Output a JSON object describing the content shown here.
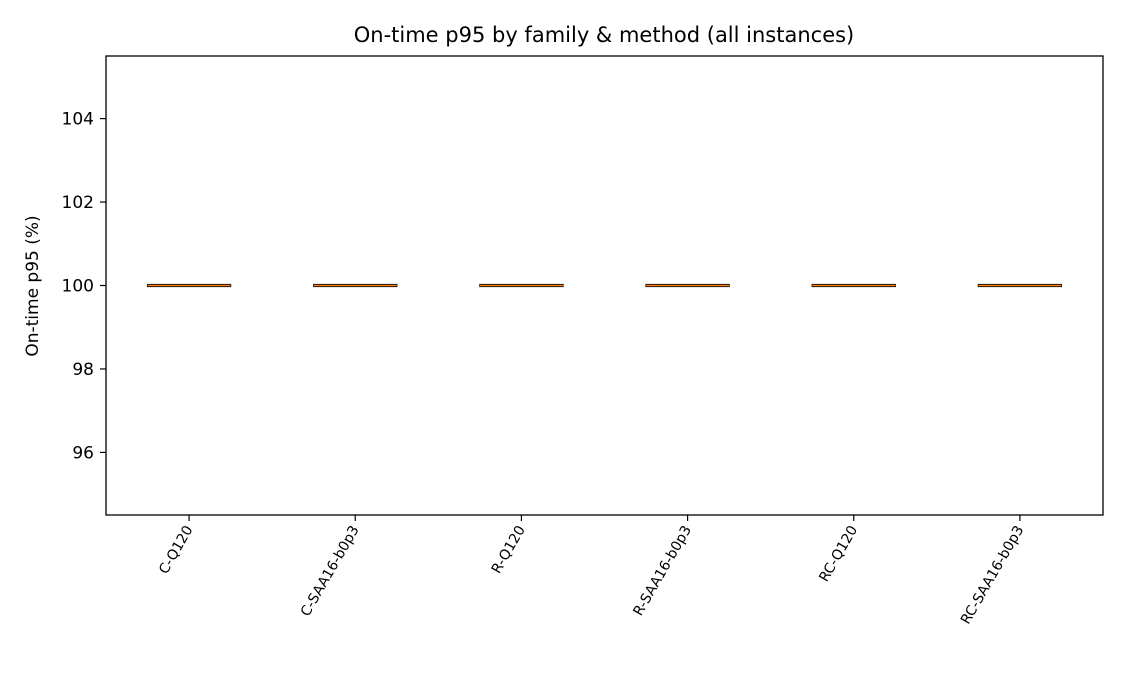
{
  "chart_data": {
    "type": "box",
    "title": "On-time p95 by family & method (all instances)",
    "xlabel": "",
    "ylabel": "On-time p95 (%)",
    "ylim": [
      94.5,
      105.5
    ],
    "yticks": [
      96,
      98,
      100,
      102,
      104
    ],
    "categories": [
      "C-Q120",
      "C-SAA16-b0p3",
      "R-Q120",
      "R-SAA16-b0p3",
      "RC-Q120",
      "RC-SAA16-b0p3"
    ],
    "boxes": [
      {
        "min": 100,
        "q1": 100,
        "median": 100,
        "q3": 100,
        "max": 100
      },
      {
        "min": 100,
        "q1": 100,
        "median": 100,
        "q3": 100,
        "max": 100
      },
      {
        "min": 100,
        "q1": 100,
        "median": 100,
        "q3": 100,
        "max": 100
      },
      {
        "min": 100,
        "q1": 100,
        "median": 100,
        "q3": 100,
        "max": 100
      },
      {
        "min": 100,
        "q1": 100,
        "median": 100,
        "q3": 100,
        "max": 100
      },
      {
        "min": 100,
        "q1": 100,
        "median": 100,
        "q3": 100,
        "max": 100
      }
    ],
    "grid": false,
    "median_color": "#ff7f0e",
    "box_color": "#000000"
  }
}
